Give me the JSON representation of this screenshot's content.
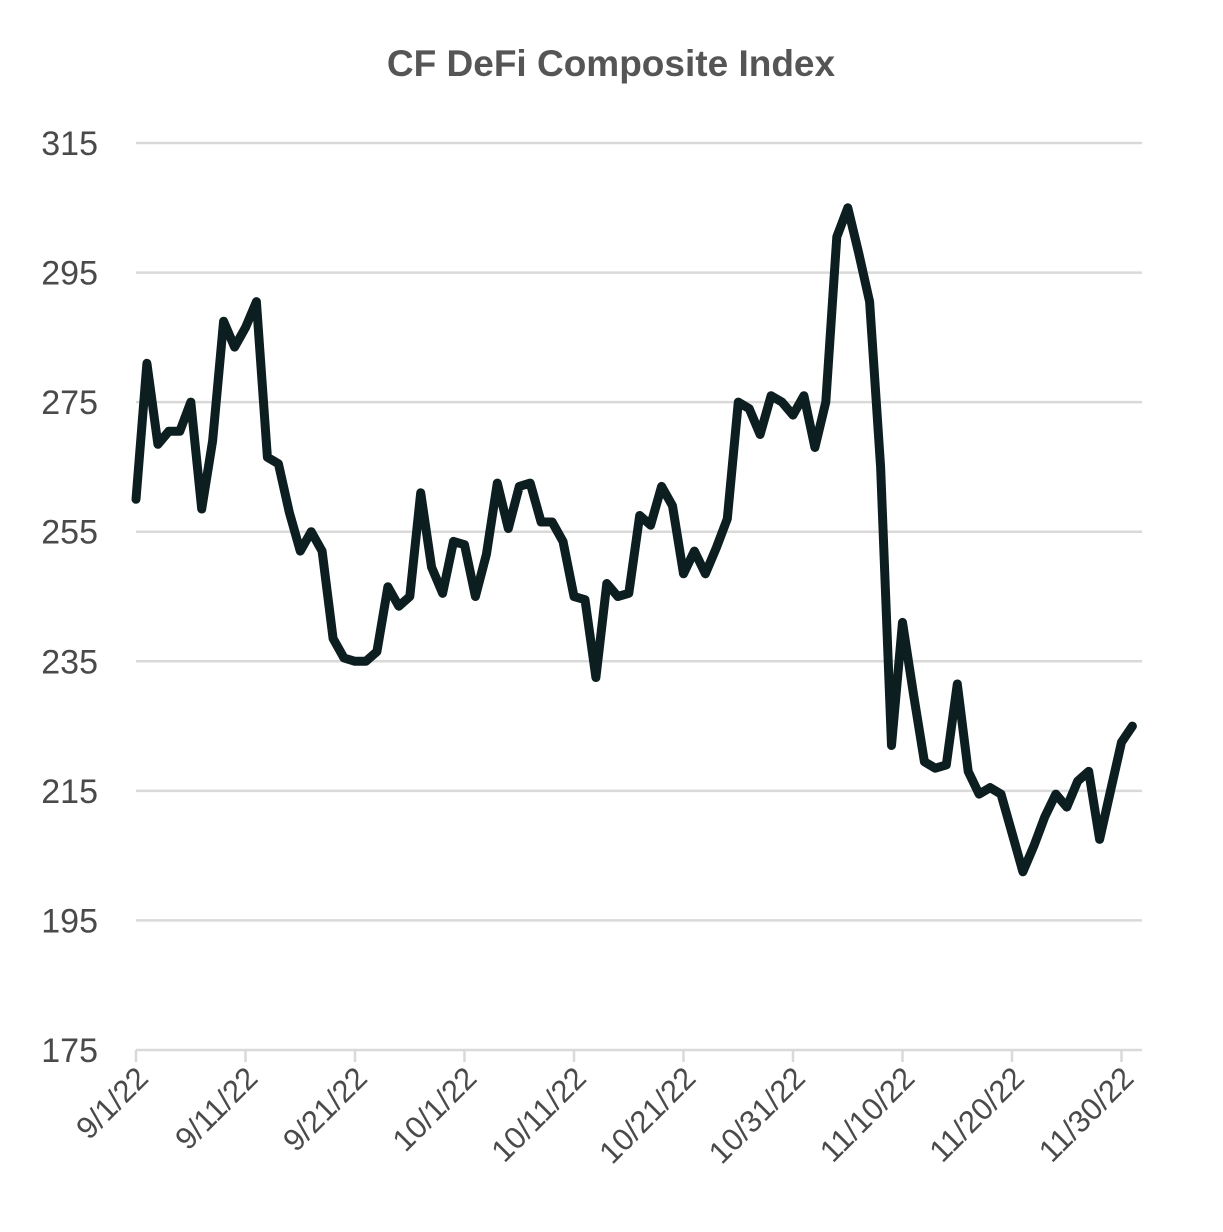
{
  "chart_data": {
    "type": "line",
    "title": "CF DeFi Composite Index",
    "xlabel": "",
    "ylabel": "",
    "ylim": [
      175,
      315
    ],
    "yticks": [
      "315",
      "295",
      "275",
      "255",
      "235",
      "215",
      "195",
      "175"
    ],
    "xticks": [
      "9/1/22",
      "9/11/22",
      "9/21/22",
      "10/1/22",
      "10/11/22",
      "10/21/22",
      "10/31/22",
      "11/10/22",
      "11/20/22",
      "11/30/22"
    ],
    "grid": true,
    "legend": "none",
    "line_color": "#0d1e20",
    "series": [
      {
        "x": [
          "9/1/22",
          "9/2/22",
          "9/3/22",
          "9/4/22",
          "9/5/22",
          "9/6/22",
          "9/7/22",
          "9/8/22",
          "9/9/22",
          "9/10/22",
          "9/11/22",
          "9/12/22",
          "9/13/22",
          "9/14/22",
          "9/15/22",
          "9/16/22",
          "9/17/22",
          "9/18/22",
          "9/19/22",
          "9/20/22",
          "9/21/22",
          "9/22/22",
          "9/23/22",
          "9/24/22",
          "9/25/22",
          "9/26/22",
          "9/27/22",
          "9/28/22",
          "9/29/22",
          "9/30/22",
          "10/1/22",
          "10/2/22",
          "10/3/22",
          "10/4/22",
          "10/5/22",
          "10/6/22",
          "10/7/22",
          "10/8/22",
          "10/9/22",
          "10/10/22",
          "10/11/22",
          "10/12/22",
          "10/13/22",
          "10/14/22",
          "10/15/22",
          "10/16/22",
          "10/17/22",
          "10/18/22",
          "10/19/22",
          "10/20/22",
          "10/21/22",
          "10/22/22",
          "10/23/22",
          "10/24/22",
          "10/25/22",
          "10/26/22",
          "10/27/22",
          "10/28/22",
          "10/29/22",
          "10/30/22",
          "10/31/22",
          "11/1/22",
          "11/2/22",
          "11/3/22",
          "11/4/22",
          "11/5/22",
          "11/6/22",
          "11/7/22",
          "11/8/22",
          "11/9/22",
          "11/10/22",
          "11/11/22",
          "11/12/22",
          "11/13/22",
          "11/14/22",
          "11/15/22",
          "11/16/22",
          "11/17/22",
          "11/18/22",
          "11/19/22",
          "11/20/22",
          "11/21/22",
          "11/22/22",
          "11/23/22",
          "11/24/22",
          "11/25/22",
          "11/26/22",
          "11/27/22",
          "11/28/22",
          "11/29/22",
          "11/30/22",
          "12/1/22"
        ],
        "values": [
          260.0,
          281.0,
          268.5,
          270.5,
          270.5,
          275.0,
          258.5,
          269.0,
          287.5,
          283.5,
          286.5,
          290.5,
          266.5,
          265.5,
          258.0,
          252.0,
          255.0,
          252.0,
          238.5,
          235.5,
          235.0,
          235.0,
          236.5,
          246.5,
          243.5,
          245.0,
          261.0,
          249.5,
          245.5,
          253.5,
          253.0,
          245.0,
          251.5,
          262.5,
          255.5,
          262.0,
          262.5,
          256.5,
          256.5,
          253.5,
          245.0,
          244.5,
          232.5,
          247.0,
          245.0,
          245.5,
          257.5,
          256.0,
          262.0,
          259.0,
          248.5,
          252.0,
          248.5,
          252.5,
          257.0,
          275.0,
          274.0,
          270.0,
          276.0,
          275.0,
          273.0,
          276.0,
          268.0,
          275.0,
          300.5,
          305.0,
          298.0,
          290.5,
          265.0,
          222.0,
          241.0,
          230.0,
          219.5,
          218.5,
          219.0,
          231.5,
          218.0,
          214.5,
          215.5,
          214.5,
          208.5,
          202.5,
          206.5,
          211.0,
          214.5,
          212.5,
          216.5,
          218.0,
          207.5,
          215.0,
          222.5,
          225.0
        ]
      }
    ]
  }
}
